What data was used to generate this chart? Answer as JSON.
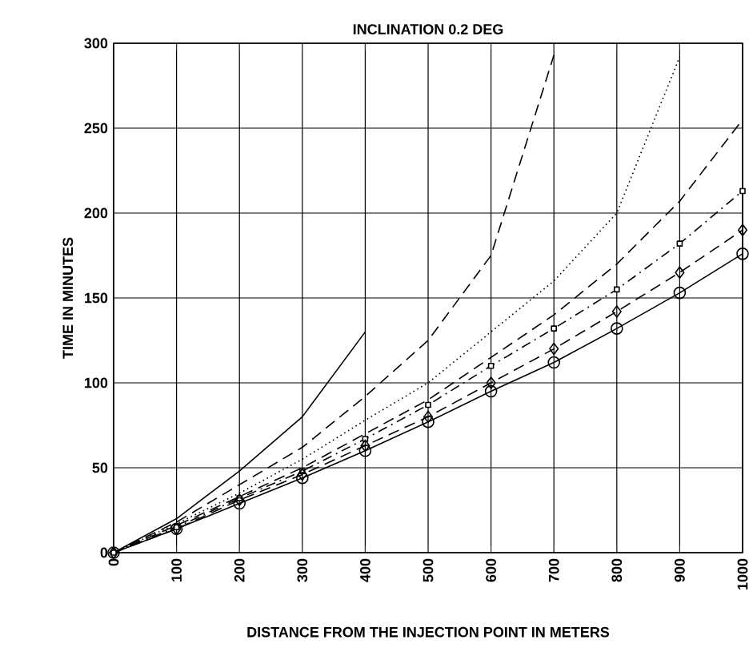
{
  "chart_data": {
    "type": "line",
    "title": "INCLINATION 0.2 DEG",
    "xlabel": "DISTANCE FROM THE INJECTION POINT IN METERS",
    "ylabel": "TIME IN MINUTES",
    "x": [
      0,
      100,
      200,
      300,
      400,
      500,
      600,
      700,
      800,
      900,
      1000
    ],
    "series": [
      {
        "color": "#000000",
        "line_style": "solid",
        "marker": "none",
        "values": [
          0,
          20,
          48,
          80,
          130,
          null,
          null,
          null,
          null,
          null,
          null
        ]
      },
      {
        "color": "#000000",
        "line_style": "dashed",
        "marker": "none",
        "values": [
          0,
          18,
          40,
          62,
          92,
          125,
          175,
          293,
          null,
          null,
          null
        ]
      },
      {
        "color": "#000000",
        "line_style": "dotted",
        "marker": "none",
        "values": [
          0,
          17,
          35,
          55,
          78,
          100,
          130,
          160,
          200,
          292,
          null
        ]
      },
      {
        "color": "#000000",
        "line_style": "dashed",
        "marker": "none",
        "values": [
          0,
          16,
          33,
          50,
          70,
          90,
          115,
          140,
          170,
          207,
          255
        ]
      },
      {
        "color": "#000000",
        "line_style": "dashdotted",
        "marker": "square",
        "values": [
          0,
          15,
          32,
          48,
          67,
          87,
          110,
          132,
          155,
          182,
          213
        ]
      },
      {
        "color": "#000000",
        "line_style": "dashed",
        "marker": "diamond",
        "values": [
          0,
          14,
          31,
          46,
          63,
          80,
          100,
          120,
          142,
          165,
          190
        ]
      },
      {
        "color": "#000000",
        "line_style": "solid",
        "marker": "circle",
        "values": [
          0,
          14,
          29,
          44,
          60,
          77,
          95,
          112,
          132,
          153,
          176
        ]
      }
    ],
    "xlim": [
      0,
      1000
    ],
    "ylim": [
      0,
      300
    ],
    "xticks": [
      0,
      100,
      200,
      300,
      400,
      500,
      600,
      700,
      800,
      900,
      1000
    ],
    "yticks": [
      0,
      50,
      100,
      150,
      200,
      250,
      300
    ],
    "grid": true
  }
}
